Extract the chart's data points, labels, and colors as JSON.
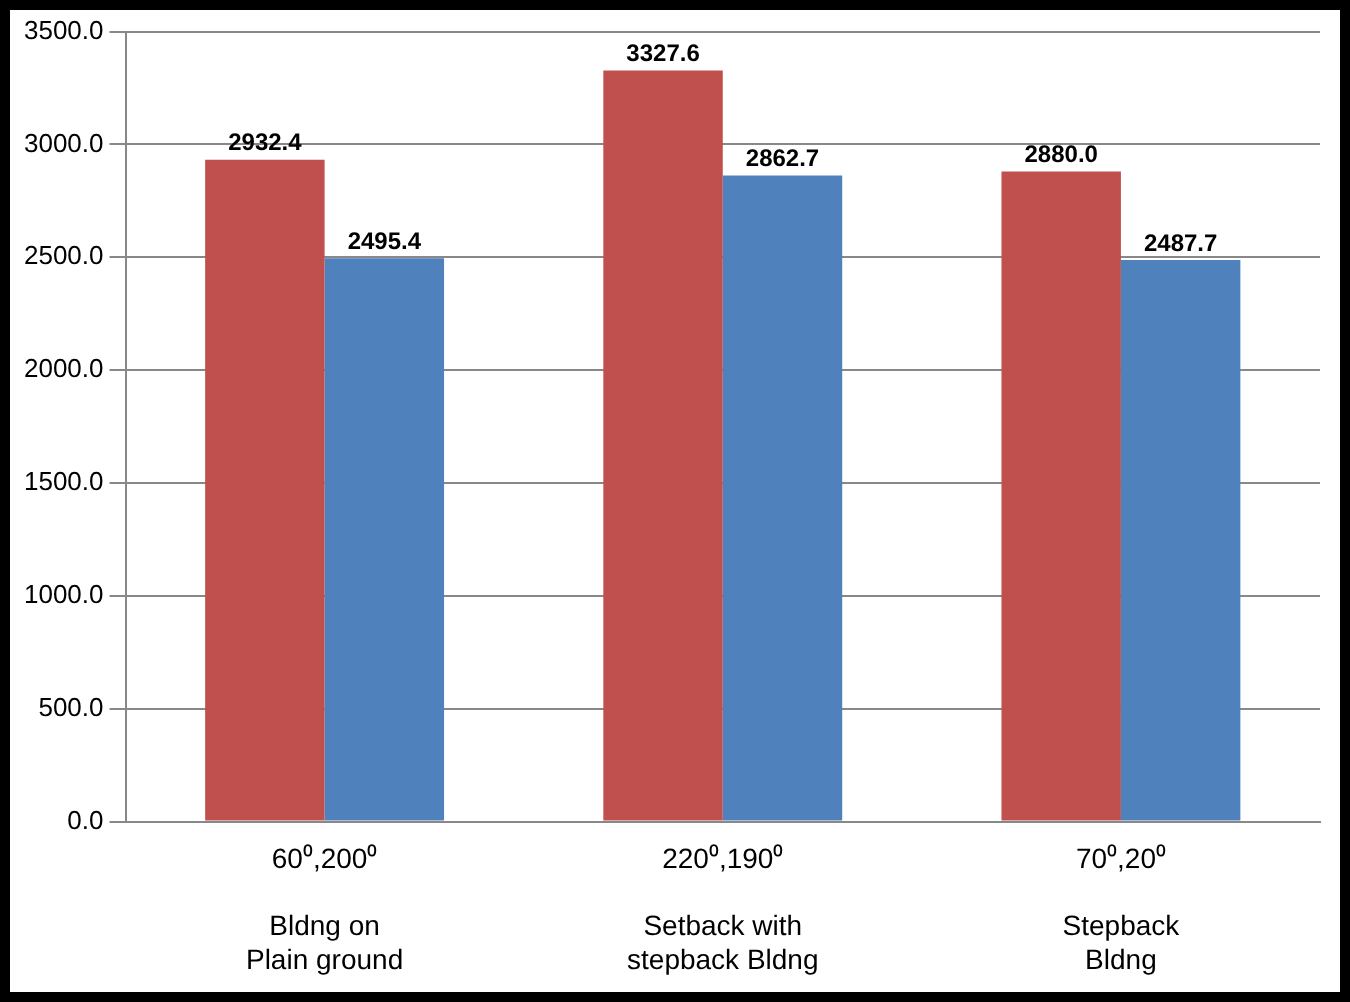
{
  "chart_data": {
    "type": "bar",
    "categories": [
      "60⁰,200⁰\n\nBldng on\nPlain ground",
      "220⁰,190⁰\n\nSetback with\nstepback Bldng",
      "70⁰,20⁰\n\nStepback\nBldng"
    ],
    "series": [
      {
        "color": "#c0504d",
        "values": [
          2932.4,
          3327.6,
          2880.0
        ],
        "value_labels": [
          "2932.4",
          "3327.6",
          "2880.0"
        ]
      },
      {
        "color": "#4f81bd",
        "values": [
          2495.4,
          2862.7,
          2487.7
        ],
        "value_labels": [
          "2495.4",
          "2862.7",
          "2487.7"
        ]
      }
    ],
    "ylim": [
      0,
      3500
    ],
    "yticks": [
      {
        "value": 0,
        "label": "0.0"
      },
      {
        "value": 500,
        "label": "500.0"
      },
      {
        "value": 1000,
        "label": "1000.0"
      },
      {
        "value": 1500,
        "label": "1500.0"
      },
      {
        "value": 2000,
        "label": "2000.0"
      },
      {
        "value": 2500,
        "label": "2500.0"
      },
      {
        "value": 3000,
        "label": "3000.0"
      },
      {
        "value": 3500,
        "label": "3500.0"
      }
    ],
    "grid": "y",
    "legend": false
  }
}
